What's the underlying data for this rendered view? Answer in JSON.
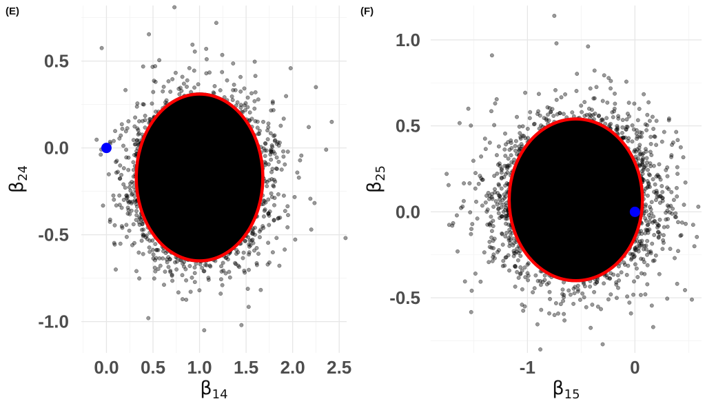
{
  "chart_data": [
    {
      "type": "scatter",
      "panel_label": "(E)",
      "xlabel": {
        "base": "β",
        "sub": "14"
      },
      "ylabel": {
        "base": "β",
        "sub": "24"
      },
      "xlim": [
        -0.27,
        2.58
      ],
      "ylim": [
        -1.18,
        0.82
      ],
      "xticks": [
        0.0,
        0.5,
        1.0,
        1.5,
        2.0,
        2.5
      ],
      "xtick_labels": [
        "0.0",
        "0.5",
        "1.0",
        "1.5",
        "2.0",
        "2.5"
      ],
      "yticks": [
        -1.0,
        -0.5,
        0.0,
        0.5
      ],
      "ytick_labels": [
        "-1.0",
        "-0.5",
        "0.0",
        "0.5"
      ],
      "grid": true,
      "point_cloud": {
        "center": [
          1.0,
          -0.17
        ],
        "sd": [
          0.34,
          0.22
        ],
        "count": 4500,
        "color": "#000000",
        "alpha": 0.4
      },
      "outliers": [
        [
          0.73,
          0.81
        ],
        [
          1.18,
          0.72
        ],
        [
          2.42,
          0.15
        ],
        [
          1.05,
          -1.05
        ],
        [
          0.1,
          -0.7
        ],
        [
          2.36,
          -0.01
        ],
        [
          2.2,
          -0.47
        ],
        [
          0.45,
          -0.98
        ],
        [
          2.25,
          0.35
        ],
        [
          1.45,
          -1.02
        ]
      ],
      "ellipse": {
        "center": [
          1.0,
          -0.17
        ],
        "rx": 0.68,
        "ry": 0.48,
        "color": "#ff0000"
      },
      "highlight_point": {
        "x": 0.0,
        "y": 0.0,
        "color": "#0000ff"
      }
    },
    {
      "type": "scatter",
      "panel_label": "(F)",
      "xlabel": {
        "base": "β",
        "sub": "15"
      },
      "ylabel": {
        "base": "β",
        "sub": "25"
      },
      "xlim": [
        -1.9,
        0.62
      ],
      "ylim": [
        -0.82,
        1.2
      ],
      "xticks": [
        -1.0,
        0.0
      ],
      "xtick_labels": [
        "-1",
        "0"
      ],
      "yticks": [
        -0.5,
        0.0,
        0.5,
        1.0
      ],
      "ytick_labels": [
        "-0.5",
        "0.0",
        "0.5",
        "1.0"
      ],
      "grid": true,
      "point_cloud": {
        "center": [
          -0.55,
          0.07
        ],
        "sd": [
          0.36,
          0.22
        ],
        "count": 4500,
        "color": "#000000",
        "alpha": 0.4
      },
      "outliers": [
        [
          -0.75,
          1.14
        ],
        [
          -0.73,
          0.98
        ],
        [
          -1.33,
          0.91
        ],
        [
          -0.3,
          -0.77
        ],
        [
          -1.65,
          -0.23
        ],
        [
          0.53,
          -0.51
        ],
        [
          -0.88,
          -0.8
        ],
        [
          0.17,
          -0.67
        ],
        [
          0.59,
          0.03
        ],
        [
          -1.55,
          0.6
        ]
      ],
      "ellipse": {
        "center": [
          -0.55,
          0.07
        ],
        "rx": 0.62,
        "ry": 0.47,
        "color": "#ff0000"
      },
      "highlight_point": {
        "x": 0.0,
        "y": 0.0,
        "color": "#0000ff"
      }
    }
  ]
}
